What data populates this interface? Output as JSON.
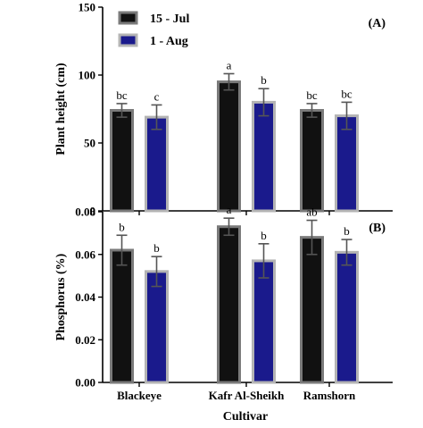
{
  "xlabel": "Cultivar",
  "legend": [
    {
      "name": "15 - Jul",
      "color": "#111111",
      "edge": "#7a7a7a"
    },
    {
      "name": "1 - Aug",
      "color": "#1a1a8c",
      "edge": "#b4b4b4"
    }
  ],
  "chart_data": [
    {
      "type": "bar",
      "panel_label": "(A)",
      "ylabel": "Plant height (cm)",
      "categories": [
        "Blackeye",
        "Kafr Al-Sheikh",
        "Ramshorn"
      ],
      "ylim": [
        0,
        150
      ],
      "yticks": [
        "0",
        "50",
        "100",
        "150"
      ],
      "ytick_values": [
        0,
        50,
        100,
        150
      ],
      "legend_position": "top-left",
      "series": [
        {
          "name": "15 - Jul",
          "values": [
            74,
            95,
            74
          ],
          "errors": [
            5,
            6,
            5
          ],
          "letters": [
            "bc",
            "a",
            "bc"
          ]
        },
        {
          "name": "1 - Aug",
          "values": [
            69,
            80,
            70
          ],
          "errors": [
            9,
            10,
            10
          ],
          "letters": [
            "c",
            "b",
            "bc"
          ]
        }
      ]
    },
    {
      "type": "bar",
      "panel_label": "(B)",
      "ylabel": "Phosphorus (%)",
      "categories": [
        "Blackeye",
        "Kafr Al-Sheikh",
        "Ramshorn"
      ],
      "ylim": [
        0,
        0.08
      ],
      "yticks": [
        "0.00",
        "0.02",
        "0.04",
        "0.06",
        "0.08"
      ],
      "ytick_values": [
        0,
        0.02,
        0.04,
        0.06,
        0.08
      ],
      "series": [
        {
          "name": "15 - Jul",
          "values": [
            0.062,
            0.073,
            0.068
          ],
          "errors": [
            0.007,
            0.004,
            0.008
          ],
          "letters": [
            "b",
            "a",
            "ab"
          ]
        },
        {
          "name": "1 - Aug",
          "values": [
            0.052,
            0.057,
            0.061
          ],
          "errors": [
            0.007,
            0.008,
            0.006
          ],
          "letters": [
            "b",
            "b",
            "b"
          ]
        }
      ]
    }
  ]
}
